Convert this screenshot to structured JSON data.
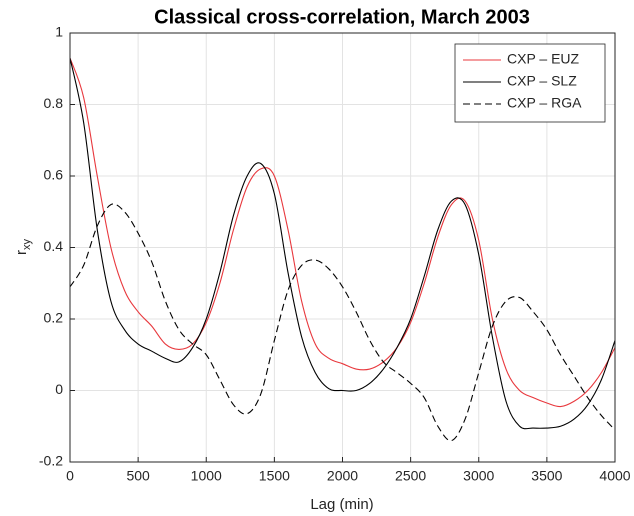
{
  "chart_data": {
    "type": "line",
    "title": "Classical cross-correlation, March 2003",
    "xlabel": "Lag (min)",
    "ylabel": "r",
    "ylabel_subscript": "xy",
    "x": [
      0,
      100,
      200,
      300,
      400,
      500,
      600,
      700,
      800,
      900,
      1000,
      1100,
      1200,
      1300,
      1400,
      1500,
      1600,
      1700,
      1800,
      1900,
      2000,
      2100,
      2200,
      2300,
      2400,
      2500,
      2600,
      2700,
      2800,
      2900,
      3000,
      3100,
      3200,
      3300,
      3400,
      3500,
      3600,
      3700,
      3800,
      3900,
      4000
    ],
    "series": [
      {
        "name": "CXP – EUZ",
        "color": "#e8383d",
        "dash": false,
        "values": [
          0.93,
          0.82,
          0.6,
          0.4,
          0.28,
          0.22,
          0.18,
          0.13,
          0.115,
          0.13,
          0.19,
          0.3,
          0.45,
          0.57,
          0.62,
          0.6,
          0.45,
          0.25,
          0.13,
          0.09,
          0.075,
          0.06,
          0.06,
          0.08,
          0.12,
          0.19,
          0.3,
          0.43,
          0.52,
          0.53,
          0.42,
          0.2,
          0.06,
          0.0,
          -0.02,
          -0.035,
          -0.045,
          -0.03,
          0.0,
          0.05,
          0.12
        ]
      },
      {
        "name": "CXP – SLZ",
        "color": "#000000",
        "dash": false,
        "values": [
          0.93,
          0.75,
          0.45,
          0.25,
          0.17,
          0.13,
          0.11,
          0.09,
          0.08,
          0.12,
          0.2,
          0.33,
          0.49,
          0.6,
          0.635,
          0.55,
          0.33,
          0.15,
          0.05,
          0.005,
          0.0,
          0.0,
          0.02,
          0.06,
          0.12,
          0.2,
          0.32,
          0.45,
          0.53,
          0.52,
          0.38,
          0.15,
          -0.03,
          -0.1,
          -0.105,
          -0.105,
          -0.1,
          -0.08,
          -0.04,
          0.03,
          0.14
        ]
      },
      {
        "name": "CXP – RGA",
        "color": "#000000",
        "dash": true,
        "values": [
          0.29,
          0.35,
          0.46,
          0.52,
          0.5,
          0.44,
          0.36,
          0.25,
          0.17,
          0.13,
          0.1,
          0.03,
          -0.04,
          -0.065,
          -0.01,
          0.14,
          0.28,
          0.35,
          0.365,
          0.34,
          0.29,
          0.22,
          0.14,
          0.08,
          0.05,
          0.02,
          -0.02,
          -0.1,
          -0.14,
          -0.08,
          0.05,
          0.18,
          0.25,
          0.26,
          0.22,
          0.17,
          0.1,
          0.04,
          -0.02,
          -0.07,
          -0.11
        ]
      }
    ],
    "xlim": [
      0,
      4000
    ],
    "xticks": [
      0,
      500,
      1000,
      1500,
      2000,
      2500,
      3000,
      3500,
      4000
    ],
    "ylim": [
      -0.2,
      1
    ],
    "yticks": [
      -0.2,
      0,
      0.2,
      0.4,
      0.6,
      0.8,
      1
    ],
    "grid": true,
    "legend": "top-right"
  }
}
